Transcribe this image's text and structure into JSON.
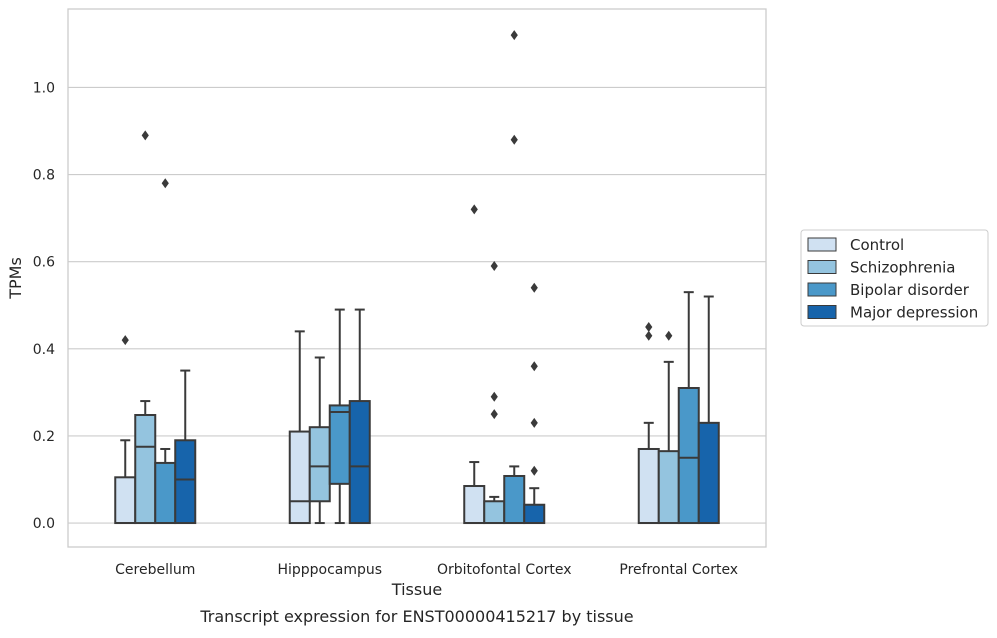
{
  "caption": "Transcript expression for ENST00000415217 by tissue",
  "chart_data": {
    "type": "boxplot",
    "xlabel": "Tissue",
    "ylabel": "TPMs",
    "categories": [
      "Cerebellum",
      "Hipppocampus",
      "Orbitofontal Cortex",
      "Prefrontal Cortex"
    ],
    "ylim": [
      -0.055,
      1.18
    ],
    "yticks": [
      0.0,
      0.2,
      0.4,
      0.6,
      0.8,
      1.0
    ],
    "ytick_labels": [
      "0.0",
      "0.2",
      "0.4",
      "0.6",
      "0.8",
      "1.0"
    ],
    "grid": true,
    "legend_position": "right",
    "series": [
      {
        "name": "Control",
        "color": "#d0e1f2",
        "boxes": [
          {
            "q1": 0.0,
            "median": 0.0,
            "q3": 0.105,
            "whislo": 0.0,
            "whishi": 0.19,
            "fliers": [
              0.42
            ]
          },
          {
            "q1": 0.0,
            "median": 0.05,
            "q3": 0.21,
            "whislo": 0.0,
            "whishi": 0.44,
            "fliers": []
          },
          {
            "q1": 0.0,
            "median": 0.0,
            "q3": 0.085,
            "whislo": 0.0,
            "whishi": 0.14,
            "fliers": [
              0.72
            ]
          },
          {
            "q1": 0.0,
            "median": 0.0,
            "q3": 0.17,
            "whislo": 0.0,
            "whishi": 0.23,
            "fliers": [
              0.43,
              0.45
            ]
          }
        ]
      },
      {
        "name": "Schizophrenia",
        "color": "#94c4df",
        "boxes": [
          {
            "q1": 0.0,
            "median": 0.175,
            "q3": 0.248,
            "whislo": 0.0,
            "whishi": 0.28,
            "fliers": [
              0.89
            ]
          },
          {
            "q1": 0.05,
            "median": 0.13,
            "q3": 0.22,
            "whislo": 0.0,
            "whishi": 0.38,
            "fliers": []
          },
          {
            "q1": 0.0,
            "median": 0.0,
            "q3": 0.05,
            "whislo": 0.0,
            "whishi": 0.06,
            "fliers": [
              0.25,
              0.29,
              0.59
            ]
          },
          {
            "q1": 0.0,
            "median": 0.0,
            "q3": 0.165,
            "whislo": 0.0,
            "whishi": 0.37,
            "fliers": [
              0.43
            ]
          }
        ]
      },
      {
        "name": "Bipolar disorder",
        "color": "#4a98c9",
        "boxes": [
          {
            "q1": 0.0,
            "median": 0.0,
            "q3": 0.138,
            "whislo": 0.0,
            "whishi": 0.17,
            "fliers": [
              0.78
            ]
          },
          {
            "q1": 0.09,
            "median": 0.255,
            "q3": 0.27,
            "whislo": 0.0,
            "whishi": 0.49,
            "fliers": []
          },
          {
            "q1": 0.0,
            "median": 0.0,
            "q3": 0.108,
            "whislo": 0.0,
            "whishi": 0.13,
            "fliers": [
              0.88,
              1.12
            ]
          },
          {
            "q1": 0.0,
            "median": 0.15,
            "q3": 0.31,
            "whislo": 0.0,
            "whishi": 0.53,
            "fliers": []
          }
        ]
      },
      {
        "name": "Major depression",
        "color": "#1764ab",
        "boxes": [
          {
            "q1": 0.0,
            "median": 0.1,
            "q3": 0.19,
            "whislo": 0.0,
            "whishi": 0.35,
            "fliers": []
          },
          {
            "q1": 0.0,
            "median": 0.13,
            "q3": 0.28,
            "whislo": 0.0,
            "whishi": 0.49,
            "fliers": []
          },
          {
            "q1": 0.0,
            "median": 0.0,
            "q3": 0.042,
            "whislo": 0.0,
            "whishi": 0.08,
            "fliers": [
              0.12,
              0.23,
              0.36,
              0.54
            ]
          },
          {
            "q1": 0.0,
            "median": 0.0,
            "q3": 0.23,
            "whislo": 0.0,
            "whishi": 0.52,
            "fliers": []
          }
        ]
      }
    ]
  }
}
